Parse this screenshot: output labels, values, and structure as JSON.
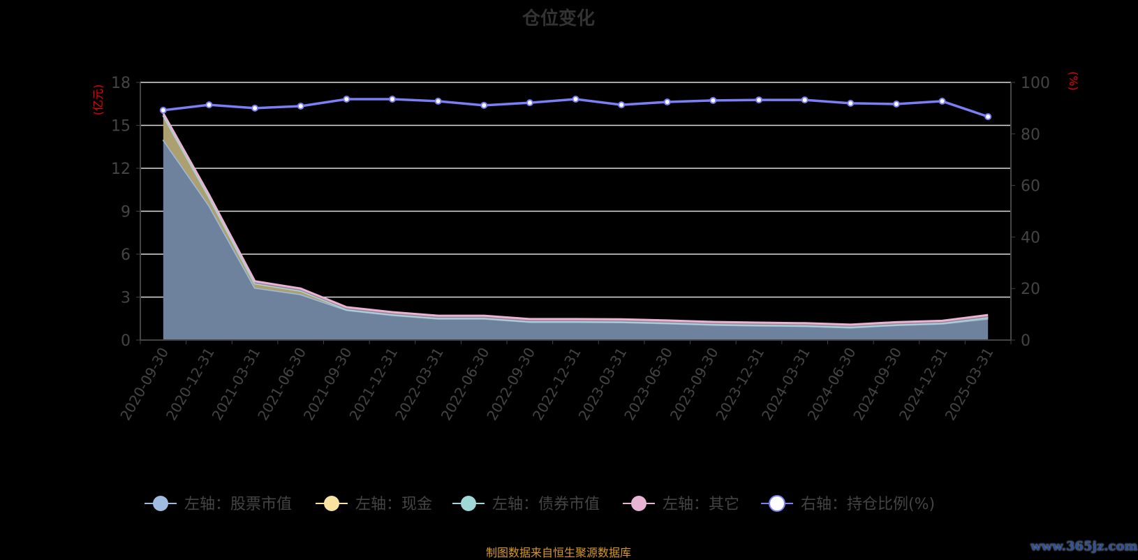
{
  "chart_data": {
    "type": "area",
    "title": "仓位变化",
    "categories": [
      "2020-09-30",
      "2020-12-31",
      "2021-03-31",
      "2021-06-30",
      "2021-09-30",
      "2021-12-31",
      "2022-03-31",
      "2022-06-30",
      "2022-09-30",
      "2022-12-31",
      "2023-03-31",
      "2023-06-30",
      "2023-09-30",
      "2023-12-31",
      "2024-03-31",
      "2024-06-30",
      "2024-09-30",
      "2024-12-31",
      "2025-03-31"
    ],
    "left_axis": {
      "label": "(亿元)",
      "ylim": [
        0,
        18
      ],
      "ticks": [
        0,
        3,
        6,
        9,
        12,
        15,
        18
      ]
    },
    "right_axis": {
      "label": "(%)",
      "ylim": [
        0,
        100
      ],
      "ticks": [
        0,
        20,
        40,
        60,
        80,
        100
      ]
    },
    "stacked": true,
    "grid": true,
    "legend_position": "bottom",
    "series": [
      {
        "name": "左轴：股票市值",
        "axis": "left",
        "color": "#9fbbe0",
        "values": [
          14.0,
          9.4,
          3.66,
          3.2,
          2.1,
          1.75,
          1.5,
          1.5,
          1.27,
          1.27,
          1.25,
          1.17,
          1.07,
          1.02,
          0.98,
          0.88,
          1.05,
          1.15,
          1.5
        ]
      },
      {
        "name": "左轴：现金",
        "axis": "left",
        "color": "#f9e3a0",
        "values": [
          1.7,
          0.6,
          0.3,
          0.25,
          0.05,
          0.05,
          0.05,
          0.05,
          0.05,
          0.05,
          0.05,
          0.05,
          0.05,
          0.05,
          0.05,
          0.05,
          0.05,
          0.05,
          0.1
        ]
      },
      {
        "name": "左轴：债券市值",
        "axis": "left",
        "color": "#a0d8d8",
        "values": [
          0,
          0,
          0,
          0,
          0,
          0,
          0,
          0,
          0,
          0,
          0,
          0,
          0,
          0,
          0,
          0,
          0,
          0,
          0
        ]
      },
      {
        "name": "左轴：其它",
        "axis": "left",
        "color": "#e8b4d4",
        "values": [
          0.15,
          0.15,
          0.15,
          0.15,
          0.15,
          0.15,
          0.15,
          0.15,
          0.15,
          0.15,
          0.15,
          0.15,
          0.15,
          0.15,
          0.15,
          0.15,
          0.15,
          0.15,
          0.15
        ]
      },
      {
        "name": "右轴：持仓比例(%)",
        "axis": "right",
        "type": "line",
        "color": "#7b7ff5",
        "values": [
          89.2,
          91.3,
          90.0,
          90.8,
          93.5,
          93.5,
          92.7,
          91.1,
          92.1,
          93.5,
          91.3,
          92.4,
          93.0,
          93.2,
          93.2,
          91.9,
          91.6,
          92.7,
          86.7
        ]
      }
    ]
  },
  "footer": {
    "source": "制图数据来自恒生聚源数据库",
    "watermark": "www.365jz.com"
  }
}
